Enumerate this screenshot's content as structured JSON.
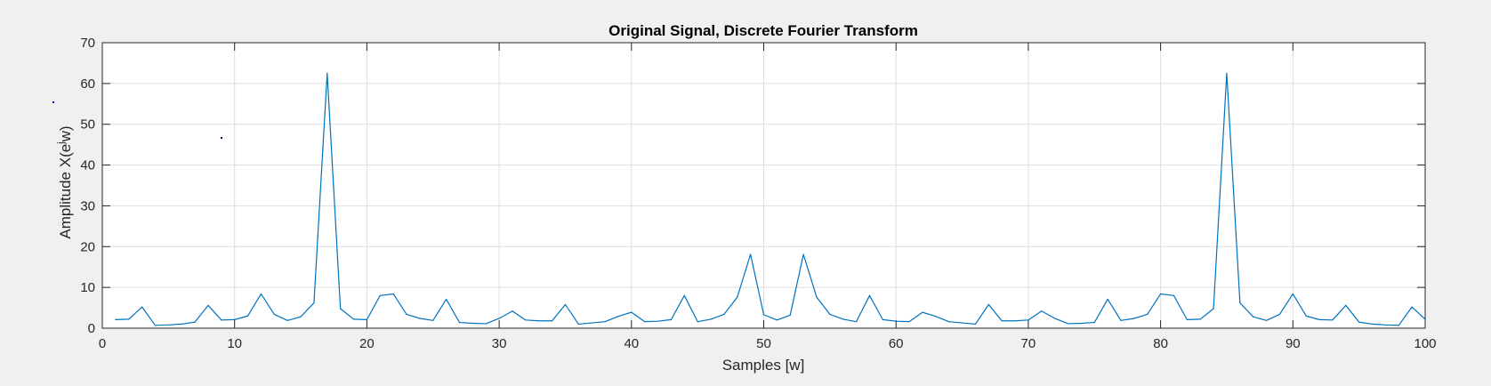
{
  "chart_data": {
    "type": "line",
    "title": "Original Signal, Discrete Fourier Transform",
    "xlabel": "Samples [w]",
    "ylabel_prefix": "Amplitude X(e",
    "ylabel_sup": "j",
    "ylabel_suffix": "w)",
    "xlim": [
      0,
      100
    ],
    "ylim": [
      0,
      70
    ],
    "xticks": [
      0,
      10,
      20,
      30,
      40,
      50,
      60,
      70,
      80,
      90,
      100
    ],
    "yticks": [
      0,
      10,
      20,
      30,
      40,
      50,
      60,
      70
    ],
    "grid": true,
    "line_color": "#0072bd",
    "background_color": "#f0f0f0",
    "axes_color": "#ffffff",
    "series": [
      {
        "x": [
          1,
          2,
          3,
          4,
          5,
          6,
          7,
          8,
          9,
          10,
          11,
          12,
          13,
          14,
          15,
          16,
          17,
          18,
          19,
          20,
          21,
          22,
          23,
          24,
          25,
          26,
          27,
          28,
          29,
          30,
          31,
          32,
          33,
          34,
          35,
          36,
          37,
          38,
          39,
          40,
          41,
          42,
          43,
          44,
          45,
          46,
          47,
          48,
          49,
          50,
          51,
          52,
          53,
          54,
          55,
          56,
          57,
          58,
          59,
          60,
          61,
          62,
          63,
          64,
          65,
          66,
          67,
          68,
          69,
          70,
          71,
          72,
          73,
          74,
          75,
          76,
          77,
          78,
          79,
          80,
          81,
          82,
          83,
          84,
          85,
          86,
          87,
          88,
          89,
          90,
          91,
          92,
          93,
          94,
          95,
          96,
          97,
          98,
          99,
          100
        ],
        "y": [
          2.1,
          2.2,
          5.2,
          0.7,
          0.8,
          1.0,
          1.5,
          5.6,
          2.0,
          2.1,
          3.0,
          8.4,
          3.4,
          1.9,
          2.8,
          6.2,
          62.5,
          4.8,
          2.2,
          2.1,
          8.0,
          8.4,
          3.4,
          2.4,
          1.9,
          7.1,
          1.4,
          1.2,
          1.1,
          2.4,
          4.2,
          2.0,
          1.8,
          1.8,
          5.8,
          1.0,
          1.3,
          1.6,
          2.9,
          3.9,
          1.6,
          1.7,
          2.1,
          8.0,
          1.6,
          2.2,
          3.4,
          7.6,
          18.1,
          3.3,
          2.0,
          3.2,
          18.1,
          7.6,
          3.4,
          2.2,
          1.6,
          8.0,
          2.1,
          1.7,
          1.6,
          3.9,
          2.9,
          1.6,
          1.3,
          1.0,
          5.8,
          1.8,
          1.8,
          2.0,
          4.2,
          2.4,
          1.1,
          1.2,
          1.4,
          7.1,
          1.9,
          2.4,
          3.4,
          8.4,
          8.0,
          2.1,
          2.2,
          4.8,
          62.5,
          6.2,
          2.8,
          1.9,
          3.4,
          8.4,
          3.0,
          2.1,
          2.0,
          5.6,
          1.5,
          1.0,
          0.8,
          0.7,
          5.2,
          2.2
        ]
      }
    ]
  }
}
